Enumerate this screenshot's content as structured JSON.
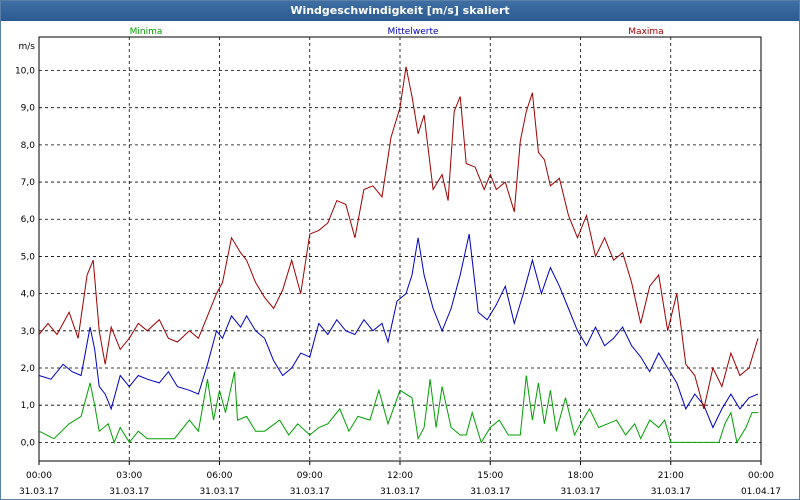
{
  "window": {
    "title": "Windgeschwindigkeit [m/s] skaliert"
  },
  "chart_data": {
    "type": "line",
    "title": "Windgeschwindigkeit [m/s] skaliert",
    "ylabel": "m/s",
    "ylim": [
      -0.5,
      10.9
    ],
    "xlim_hours": [
      0,
      24
    ],
    "grid": true,
    "y_ticks": [
      "0,0",
      "1,0",
      "2,0",
      "3,0",
      "4,0",
      "5,0",
      "6,0",
      "7,0",
      "8,0",
      "9,0",
      "10,0"
    ],
    "x_ticks": [
      {
        "time": "00:00",
        "date": "31.03.17"
      },
      {
        "time": "03:00",
        "date": "31.03.17"
      },
      {
        "time": "06:00",
        "date": "31.03.17"
      },
      {
        "time": "09:00",
        "date": "31.03.17"
      },
      {
        "time": "12:00",
        "date": "31.03.17"
      },
      {
        "time": "15:00",
        "date": "31.03.17"
      },
      {
        "time": "18:00",
        "date": "31.03.17"
      },
      {
        "time": "21:00",
        "date": "31.03.17"
      },
      {
        "time": "00:00",
        "date": "01.04.17"
      }
    ],
    "series": [
      {
        "name": "Minima",
        "color": "#00a000",
        "x": [
          0,
          0.5,
          1,
          1.4,
          1.7,
          1.85,
          2,
          2.3,
          2.5,
          2.7,
          3,
          3.3,
          3.6,
          4,
          4.5,
          5,
          5.3,
          5.6,
          5.8,
          6,
          6.2,
          6.5,
          6.6,
          6.9,
          7.2,
          7.5,
          8,
          8.3,
          8.6,
          9,
          9.3,
          9.6,
          10,
          10.3,
          10.6,
          11,
          11.3,
          11.6,
          12,
          12.4,
          12.6,
          12.8,
          13,
          13.2,
          13.4,
          13.7,
          14,
          14.2,
          14.4,
          14.7,
          15,
          15.3,
          15.6,
          16,
          16.2,
          16.4,
          16.6,
          16.8,
          17,
          17.2,
          17.5,
          17.8,
          18,
          18.3,
          18.6,
          18.9,
          19.2,
          19.5,
          19.8,
          20,
          20.3,
          20.6,
          20.8,
          21,
          21.3,
          21.6,
          22,
          22.3,
          22.6,
          22.8,
          23,
          23.2,
          23.5,
          23.7,
          23.9
        ],
        "values": [
          0.3,
          0.1,
          0.5,
          0.7,
          1.6,
          1.0,
          0.3,
          0.5,
          0.0,
          0.4,
          0.0,
          0.3,
          0.1,
          0.1,
          0.1,
          0.6,
          0.3,
          1.7,
          0.6,
          1.4,
          0.8,
          1.9,
          0.6,
          0.7,
          0.3,
          0.3,
          0.6,
          0.2,
          0.5,
          0.2,
          0.4,
          0.5,
          0.9,
          0.3,
          0.7,
          0.6,
          1.4,
          0.5,
          1.4,
          1.2,
          0.1,
          0.4,
          1.7,
          0.4,
          1.5,
          0.4,
          0.2,
          0.2,
          0.8,
          0.0,
          0.4,
          0.6,
          0.2,
          0.2,
          1.8,
          0.6,
          1.6,
          0.5,
          1.4,
          0.3,
          1.2,
          0.2,
          0.5,
          0.9,
          0.4,
          0.5,
          0.6,
          0.2,
          0.5,
          0.1,
          0.6,
          0.4,
          0.6,
          0.0,
          0.0,
          0.0,
          0.0,
          0.0,
          0.0,
          0.5,
          0.8,
          0.0,
          0.4,
          0.8,
          0.8
        ]
      },
      {
        "name": "Mittelwerte",
        "color": "#0000c0",
        "x": [
          0,
          0.4,
          0.8,
          1.1,
          1.4,
          1.7,
          1.85,
          2,
          2.2,
          2.4,
          2.7,
          3,
          3.3,
          3.6,
          4,
          4.3,
          4.6,
          5,
          5.3,
          5.6,
          5.9,
          6.1,
          6.4,
          6.7,
          6.9,
          7.2,
          7.5,
          7.8,
          8.1,
          8.4,
          8.7,
          9,
          9.3,
          9.6,
          9.9,
          10.2,
          10.5,
          10.8,
          11.1,
          11.4,
          11.6,
          11.9,
          12.2,
          12.4,
          12.6,
          12.8,
          13.1,
          13.4,
          13.7,
          14,
          14.3,
          14.6,
          14.9,
          15.2,
          15.5,
          15.8,
          16.1,
          16.4,
          16.7,
          17,
          17.3,
          17.6,
          17.9,
          18.2,
          18.5,
          18.8,
          19.1,
          19.4,
          19.7,
          20,
          20.3,
          20.6,
          20.9,
          21.2,
          21.5,
          21.8,
          22.1,
          22.4,
          22.7,
          23,
          23.3,
          23.6,
          23.9
        ],
        "values": [
          1.8,
          1.7,
          2.1,
          1.9,
          1.8,
          3.1,
          2.5,
          1.5,
          1.3,
          0.9,
          1.8,
          1.5,
          1.8,
          1.7,
          1.6,
          1.9,
          1.5,
          1.4,
          1.3,
          2.1,
          3.0,
          2.8,
          3.4,
          3.1,
          3.4,
          3.0,
          2.8,
          2.2,
          1.8,
          2.0,
          2.4,
          2.3,
          3.2,
          2.9,
          3.3,
          3.0,
          2.9,
          3.3,
          3.0,
          3.2,
          2.7,
          3.8,
          4.0,
          4.5,
          5.5,
          4.5,
          3.6,
          3.0,
          3.6,
          4.5,
          5.6,
          3.5,
          3.3,
          3.7,
          4.2,
          3.2,
          4.0,
          4.9,
          4.0,
          4.7,
          4.2,
          3.6,
          3.0,
          2.6,
          3.1,
          2.6,
          2.8,
          3.1,
          2.6,
          2.3,
          1.9,
          2.4,
          2.0,
          1.6,
          0.9,
          1.3,
          1.0,
          0.4,
          0.9,
          1.3,
          0.9,
          1.2,
          1.3
        ]
      },
      {
        "name": "Maxima",
        "color": "#a00000",
        "x": [
          0,
          0.3,
          0.6,
          1,
          1.3,
          1.6,
          1.8,
          2,
          2.2,
          2.4,
          2.7,
          3,
          3.3,
          3.6,
          4,
          4.3,
          4.6,
          5,
          5.3,
          5.6,
          5.9,
          6.1,
          6.4,
          6.7,
          6.9,
          7.2,
          7.5,
          7.8,
          8.1,
          8.4,
          8.7,
          9,
          9.3,
          9.6,
          9.9,
          10.2,
          10.5,
          10.8,
          11.1,
          11.4,
          11.7,
          12,
          12.2,
          12.4,
          12.6,
          12.8,
          13.1,
          13.4,
          13.6,
          13.8,
          14,
          14.2,
          14.5,
          14.8,
          15,
          15.2,
          15.5,
          15.8,
          16,
          16.2,
          16.4,
          16.6,
          16.8,
          17,
          17.3,
          17.6,
          17.9,
          18.2,
          18.5,
          18.8,
          19.1,
          19.4,
          19.7,
          20,
          20.3,
          20.6,
          20.9,
          21.2,
          21.5,
          21.8,
          22.1,
          22.4,
          22.7,
          23,
          23.3,
          23.6,
          23.9
        ],
        "values": [
          2.9,
          3.2,
          2.9,
          3.5,
          2.8,
          4.5,
          4.9,
          3.0,
          2.1,
          3.1,
          2.5,
          2.8,
          3.2,
          3.0,
          3.3,
          2.8,
          2.7,
          3.0,
          2.8,
          3.4,
          4.0,
          4.3,
          5.5,
          5.1,
          4.9,
          4.3,
          3.9,
          3.6,
          4.1,
          4.9,
          4.0,
          5.6,
          5.7,
          5.9,
          6.5,
          6.4,
          5.5,
          6.8,
          6.9,
          6.6,
          8.2,
          9.0,
          10.1,
          9.3,
          8.3,
          8.8,
          6.8,
          7.2,
          6.5,
          8.9,
          9.3,
          7.5,
          7.4,
          6.8,
          7.2,
          6.8,
          7.0,
          6.2,
          8.1,
          8.9,
          9.4,
          7.8,
          7.6,
          6.9,
          7.1,
          6.1,
          5.5,
          6.1,
          5.0,
          5.5,
          4.9,
          5.1,
          4.3,
          3.2,
          4.2,
          4.5,
          3.0,
          4.0,
          2.1,
          1.8,
          0.9,
          2.0,
          1.5,
          2.4,
          1.8,
          2.0,
          2.8
        ]
      }
    ]
  }
}
